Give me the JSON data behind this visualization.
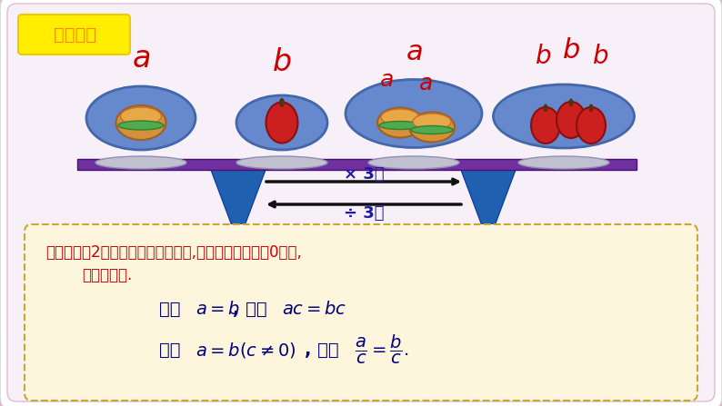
{
  "bg_color": "#e8a8c8",
  "inner_bg": "#f8f0f8",
  "title_label": "新课讲解",
  "title_color": "#ff8800",
  "title_bg": "#ffee00",
  "bar_color": "#7030a0",
  "triangle_color": "#2060b0",
  "box_bg": "#fdf5dc",
  "box_border_color": "#c8a832",
  "prop_color": "#cc0000",
  "formula_color": "#000080",
  "label_color": "#cc0000",
  "times3": "× 3？",
  "div3": "÷ 3？",
  "prop_line1": "等式的性趄2：等式两边乘同一个数,或除以同一个不为0的数,",
  "prop_line2": "结果仍相等.",
  "if_mc": "如果",
  "then_mc": ", 那么",
  "if_mc2": "如果",
  "then_mc2": ", 那么"
}
